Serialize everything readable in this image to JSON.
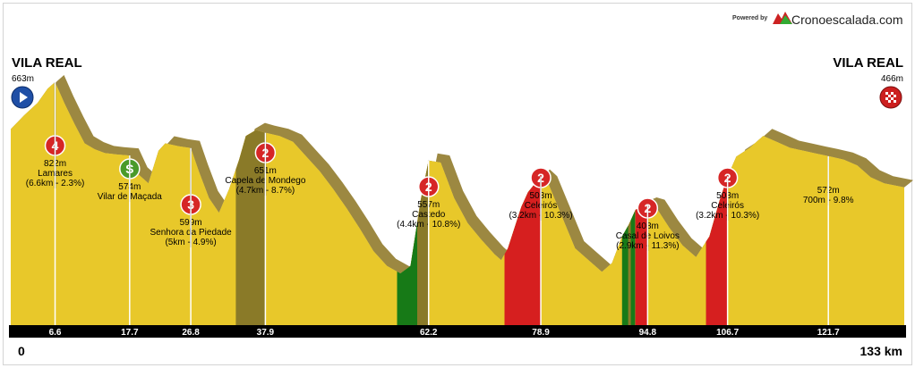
{
  "branding": {
    "powered_by": "Powered by",
    "name": "Cronoescalada.com",
    "logo_icon": "mountain-logo-icon",
    "logo_colors": [
      "#cc2222",
      "#33aa33"
    ]
  },
  "start": {
    "name": "VILA REAL",
    "altitude": "663m",
    "icon": "play-arrow-icon",
    "icon_color": "#1f4fa6"
  },
  "finish": {
    "name": "VILA REAL",
    "altitude": "466m",
    "icon": "checkered-flag-icon",
    "icon_color": "#cc1f1f"
  },
  "colors": {
    "profile_fill": "#e8c82a",
    "profile_edge": "#8b7320",
    "climb_fill": "#8a7a28",
    "steep_red": "#d61f1f",
    "steep_green": "#177a17",
    "axis_bar": "#000000",
    "axis_text": "#ffffff",
    "cat4_badge": "#d62626",
    "cat3_badge": "#d62626",
    "cat2_badge": "#d62626",
    "sprint_badge": "#4a9a2a"
  },
  "chart_data": {
    "type": "area",
    "title": "",
    "xlabel": "",
    "ylabel": "",
    "xlim": [
      0,
      133
    ],
    "ylim": [
      0,
      1100
    ],
    "distance_unit": "km",
    "start_label": "0",
    "end_label": "133 km",
    "profile": {
      "x": [
        0,
        2,
        4,
        5.5,
        6.6,
        8,
        9.5,
        11,
        12.5,
        14,
        15.5,
        17.7,
        19,
        20.5,
        22,
        23,
        24,
        25,
        26.8,
        28,
        29.5,
        31,
        32.5,
        34,
        35,
        36.5,
        37.9,
        40,
        42,
        44,
        46,
        48,
        50,
        52,
        54,
        56,
        58,
        59.5,
        61,
        62.2,
        64,
        66,
        68,
        70,
        72,
        73,
        74,
        75,
        76,
        77,
        78.9,
        80,
        82,
        84,
        86,
        88,
        89.5,
        91,
        92,
        93,
        94.8,
        96,
        98,
        100,
        102,
        104,
        105.5,
        106.7,
        108,
        110,
        112,
        114,
        116,
        118,
        120,
        121.7,
        124,
        126,
        128,
        130,
        133
      ],
      "y": [
        663,
        710,
        752,
        800,
        822,
        750,
        680,
        615,
        595,
        582,
        578,
        574,
        510,
        480,
        590,
        615,
        610,
        605,
        599,
        520,
        430,
        380,
        460,
        560,
        640,
        660,
        651,
        640,
        620,
        570,
        520,
        460,
        395,
        325,
        250,
        200,
        175,
        200,
        420,
        557,
        550,
        430,
        345,
        290,
        240,
        220,
        260,
        330,
        400,
        450,
        503,
        480,
        370,
        260,
        220,
        180,
        210,
        300,
        340,
        390,
        408,
        400,
        330,
        270,
        230,
        300,
        420,
        503,
        570,
        600,
        640,
        620,
        600,
        590,
        580,
        572,
        560,
        540,
        500,
        480,
        466
      ]
    },
    "climbs": [
      {
        "category": "4",
        "badge_icon": "category-4-badge-icon",
        "km": 6.6,
        "altitude": "822m",
        "name": "Lamares",
        "stats": "(6.6km - 2.3%)",
        "km_label": "6.6"
      },
      {
        "category": "S",
        "badge_icon": "sprint-badge-icon",
        "km": 17.7,
        "altitude": "574m",
        "name": "Vilar de Maçada",
        "stats": "",
        "km_label": "17.7"
      },
      {
        "category": "3",
        "badge_icon": "category-3-badge-icon",
        "km": 26.8,
        "altitude": "599m",
        "name": "Senhora da Piedade",
        "stats": "(5km - 4.9%)",
        "km_label": "26.8"
      },
      {
        "category": "2",
        "badge_icon": "category-2-badge-icon",
        "km": 37.9,
        "altitude": "651m",
        "name": "Capela de Mondego",
        "stats": "(4.7km - 8.7%)",
        "km_label": "37.9"
      },
      {
        "category": "2",
        "badge_icon": "category-2-badge-icon",
        "km": 62.2,
        "altitude": "557m",
        "name": "Castedo",
        "stats": "(4.4km - 10.8%)",
        "km_label": "62.2"
      },
      {
        "category": "2",
        "badge_icon": "category-2-badge-icon",
        "km": 78.9,
        "altitude": "503m",
        "name": "Celeirós",
        "stats": "(3.2km - 10.3%)",
        "km_label": "78.9"
      },
      {
        "category": "2",
        "badge_icon": "category-2-badge-icon",
        "km": 94.8,
        "altitude": "408m",
        "name": "Casal de Loivos",
        "stats": "(2.9km - 11.3%)",
        "km_label": "94.8"
      },
      {
        "category": "2",
        "badge_icon": "category-2-badge-icon",
        "km": 106.7,
        "altitude": "503m",
        "name": "Celeirós",
        "stats": "(3.2km - 10.3%)",
        "km_label": "106.7"
      },
      {
        "category": "",
        "badge_icon": "",
        "km": 121.7,
        "altitude": "572m",
        "name": "700m - 9.8%",
        "stats": "",
        "km_label": "121.7"
      }
    ],
    "steep_sections": [
      {
        "from": 57.5,
        "to": 60.5,
        "color": "green"
      },
      {
        "from": 73.5,
        "to": 78.9,
        "color": "red"
      },
      {
        "from": 91,
        "to": 91.9,
        "color": "green"
      },
      {
        "from": 92.3,
        "to": 92.9,
        "color": "green"
      },
      {
        "from": 93,
        "to": 94.8,
        "color": "red"
      },
      {
        "from": 103.5,
        "to": 106.7,
        "color": "red"
      }
    ],
    "climb_slopes": [
      {
        "from": 33.5,
        "to": 37.9
      },
      {
        "from": 57.5,
        "to": 62.2
      },
      {
        "from": 73.5,
        "to": 78.9
      },
      {
        "from": 91.5,
        "to": 94.8
      },
      {
        "from": 103.5,
        "to": 106.7
      }
    ]
  }
}
